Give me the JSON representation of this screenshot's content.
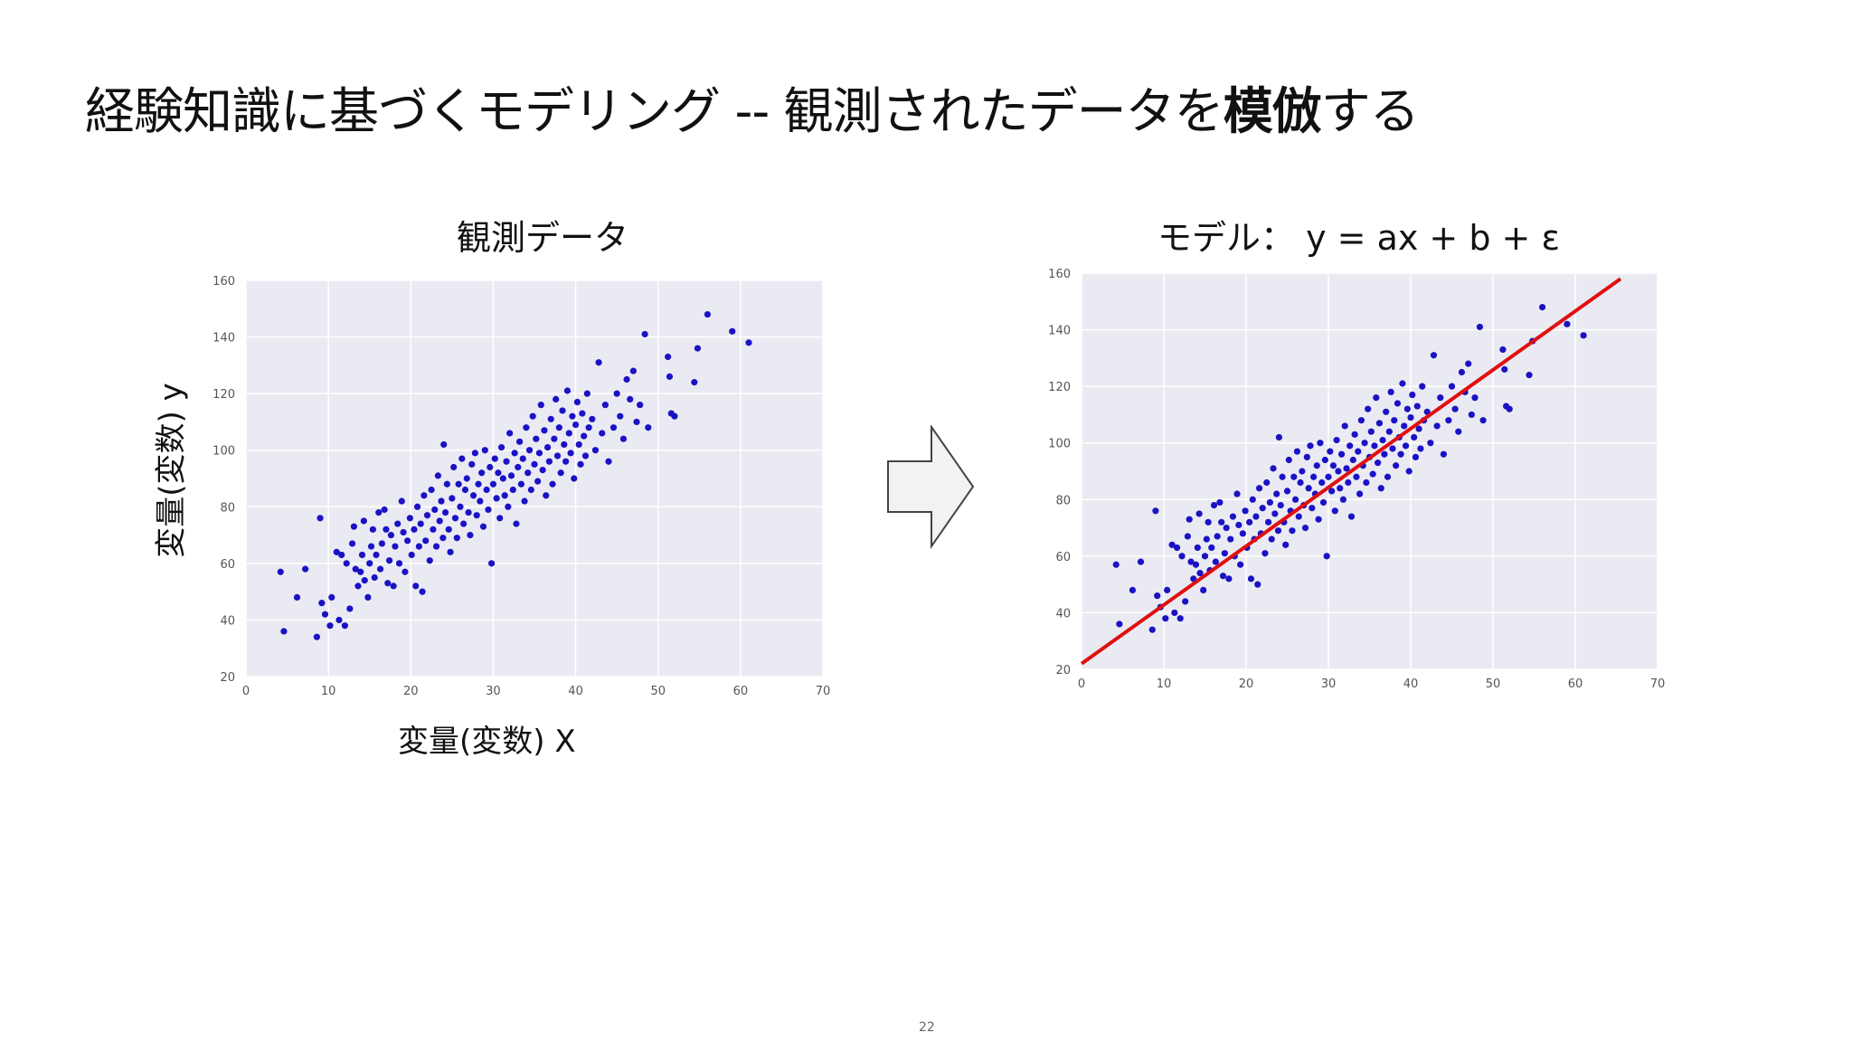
{
  "slide": {
    "title_main": "経験知識に基づくモデリング -- 観測されたデータを",
    "title_emph": "模倣",
    "title_tail": "する",
    "page_number": "22"
  },
  "chart_data": [
    {
      "type": "scatter",
      "title": "観測データ",
      "xlabel": "変量(変数) X",
      "ylabel": "変量(変数) y",
      "xlim": [
        0,
        70
      ],
      "ylim": [
        20,
        160
      ],
      "xticks": [
        "0",
        "10",
        "20",
        "30",
        "40",
        "50",
        "60",
        "70"
      ],
      "yticks": [
        "20",
        "40",
        "60",
        "80",
        "100",
        "120",
        "140",
        "160"
      ],
      "grid": true,
      "colors": {
        "background": "#eaeaf2",
        "points": "#1a12c4"
      },
      "regression": null
    },
    {
      "type": "scatter",
      "title": "モデル： y = ax + b + ε",
      "xlabel": "",
      "ylabel": "",
      "xlim": [
        0,
        70
      ],
      "ylim": [
        20,
        160
      ],
      "xticks": [
        "0",
        "10",
        "20",
        "30",
        "40",
        "50",
        "60",
        "70"
      ],
      "yticks": [
        "20",
        "40",
        "60",
        "80",
        "100",
        "120",
        "140",
        "160"
      ],
      "grid": true,
      "colors": {
        "background": "#eaeaf2",
        "points": "#1a12c4",
        "line": "#e01010"
      },
      "regression": {
        "x": [
          0,
          65.5
        ],
        "y": [
          22,
          158
        ]
      }
    }
  ],
  "points": [
    [
      4.2,
      57
    ],
    [
      4.6,
      36
    ],
    [
      6.2,
      48
    ],
    [
      7.2,
      58
    ],
    [
      8.6,
      34
    ],
    [
      9.0,
      76
    ],
    [
      9.2,
      46
    ],
    [
      9.6,
      42
    ],
    [
      10.2,
      38
    ],
    [
      10.4,
      48
    ],
    [
      11.0,
      64
    ],
    [
      11.3,
      40
    ],
    [
      11.6,
      63
    ],
    [
      12.0,
      38
    ],
    [
      12.2,
      60
    ],
    [
      12.6,
      44
    ],
    [
      12.9,
      67
    ],
    [
      13.1,
      73
    ],
    [
      13.3,
      58
    ],
    [
      13.6,
      52
    ],
    [
      13.9,
      57
    ],
    [
      14.1,
      63
    ],
    [
      14.3,
      75
    ],
    [
      14.4,
      54
    ],
    [
      14.8,
      48
    ],
    [
      15.0,
      60
    ],
    [
      15.2,
      66
    ],
    [
      15.4,
      72
    ],
    [
      15.6,
      55
    ],
    [
      15.8,
      63
    ],
    [
      16.1,
      78
    ],
    [
      16.3,
      58
    ],
    [
      16.5,
      67
    ],
    [
      16.8,
      79
    ],
    [
      17.0,
      72
    ],
    [
      17.2,
      53
    ],
    [
      17.4,
      61
    ],
    [
      17.6,
      70
    ],
    [
      17.9,
      52
    ],
    [
      18.1,
      66
    ],
    [
      18.4,
      74
    ],
    [
      18.6,
      60
    ],
    [
      18.9,
      82
    ],
    [
      19.1,
      71
    ],
    [
      19.3,
      57
    ],
    [
      19.6,
      68
    ],
    [
      19.9,
      76
    ],
    [
      20.1,
      63
    ],
    [
      20.4,
      72
    ],
    [
      20.6,
      52
    ],
    [
      20.8,
      80
    ],
    [
      21.0,
      66
    ],
    [
      21.2,
      74
    ],
    [
      21.4,
      50
    ],
    [
      21.6,
      84
    ],
    [
      21.8,
      68
    ],
    [
      22.0,
      77
    ],
    [
      22.3,
      61
    ],
    [
      22.5,
      86
    ],
    [
      22.7,
      72
    ],
    [
      22.9,
      79
    ],
    [
      23.1,
      66
    ],
    [
      23.3,
      91
    ],
    [
      23.5,
      75
    ],
    [
      23.7,
      82
    ],
    [
      23.9,
      69
    ],
    [
      24.0,
      102
    ],
    [
      24.2,
      78
    ],
    [
      24.4,
      88
    ],
    [
      24.6,
      72
    ],
    [
      24.8,
      64
    ],
    [
      25.0,
      83
    ],
    [
      25.2,
      94
    ],
    [
      25.4,
      76
    ],
    [
      25.6,
      69
    ],
    [
      25.8,
      88
    ],
    [
      26.0,
      80
    ],
    [
      26.2,
      97
    ],
    [
      26.4,
      74
    ],
    [
      26.6,
      86
    ],
    [
      26.8,
      90
    ],
    [
      27.0,
      78
    ],
    [
      27.2,
      70
    ],
    [
      27.4,
      95
    ],
    [
      27.6,
      84
    ],
    [
      27.8,
      99
    ],
    [
      28.0,
      77
    ],
    [
      28.2,
      88
    ],
    [
      28.4,
      82
    ],
    [
      28.6,
      92
    ],
    [
      28.8,
      73
    ],
    [
      29.0,
      100
    ],
    [
      29.2,
      86
    ],
    [
      29.4,
      79
    ],
    [
      29.6,
      94
    ],
    [
      29.8,
      60
    ],
    [
      30.0,
      88
    ],
    [
      30.2,
      97
    ],
    [
      30.4,
      83
    ],
    [
      30.6,
      92
    ],
    [
      30.8,
      76
    ],
    [
      31.0,
      101
    ],
    [
      31.2,
      90
    ],
    [
      31.4,
      84
    ],
    [
      31.6,
      96
    ],
    [
      31.8,
      80
    ],
    [
      32.0,
      106
    ],
    [
      32.2,
      91
    ],
    [
      32.4,
      86
    ],
    [
      32.6,
      99
    ],
    [
      32.8,
      74
    ],
    [
      33.0,
      94
    ],
    [
      33.2,
      103
    ],
    [
      33.4,
      88
    ],
    [
      33.6,
      97
    ],
    [
      33.8,
      82
    ],
    [
      34.0,
      108
    ],
    [
      34.2,
      92
    ],
    [
      34.4,
      100
    ],
    [
      34.6,
      86
    ],
    [
      34.8,
      112
    ],
    [
      35.0,
      95
    ],
    [
      35.2,
      104
    ],
    [
      35.4,
      89
    ],
    [
      35.6,
      99
    ],
    [
      35.8,
      116
    ],
    [
      36.0,
      93
    ],
    [
      36.2,
      107
    ],
    [
      36.4,
      84
    ],
    [
      36.6,
      101
    ],
    [
      36.8,
      96
    ],
    [
      37.0,
      111
    ],
    [
      37.2,
      88
    ],
    [
      37.4,
      104
    ],
    [
      37.6,
      118
    ],
    [
      37.8,
      98
    ],
    [
      38.0,
      108
    ],
    [
      38.2,
      92
    ],
    [
      38.4,
      114
    ],
    [
      38.6,
      102
    ],
    [
      38.8,
      96
    ],
    [
      39.0,
      121
    ],
    [
      39.2,
      106
    ],
    [
      39.4,
      99
    ],
    [
      39.6,
      112
    ],
    [
      39.8,
      90
    ],
    [
      40.0,
      109
    ],
    [
      40.2,
      117
    ],
    [
      40.4,
      102
    ],
    [
      40.6,
      95
    ],
    [
      40.8,
      113
    ],
    [
      41.0,
      105
    ],
    [
      41.2,
      98
    ],
    [
      41.4,
      120
    ],
    [
      41.6,
      108
    ],
    [
      42.0,
      111
    ],
    [
      42.4,
      100
    ],
    [
      42.8,
      131
    ],
    [
      43.2,
      106
    ],
    [
      43.6,
      116
    ],
    [
      44.0,
      96
    ],
    [
      44.6,
      108
    ],
    [
      45.0,
      120
    ],
    [
      45.4,
      112
    ],
    [
      45.8,
      104
    ],
    [
      46.2,
      125
    ],
    [
      46.6,
      118
    ],
    [
      47.0,
      128
    ],
    [
      47.4,
      110
    ],
    [
      47.8,
      116
    ],
    [
      48.4,
      141
    ],
    [
      48.8,
      108
    ],
    [
      51.2,
      133
    ],
    [
      51.6,
      113
    ],
    [
      51.4,
      126
    ],
    [
      52.0,
      112
    ],
    [
      54.4,
      124
    ],
    [
      54.8,
      136
    ],
    [
      56.0,
      148
    ],
    [
      59.0,
      142
    ],
    [
      61.0,
      138
    ]
  ],
  "right_heading": "モデル： y = ax + b + ε"
}
